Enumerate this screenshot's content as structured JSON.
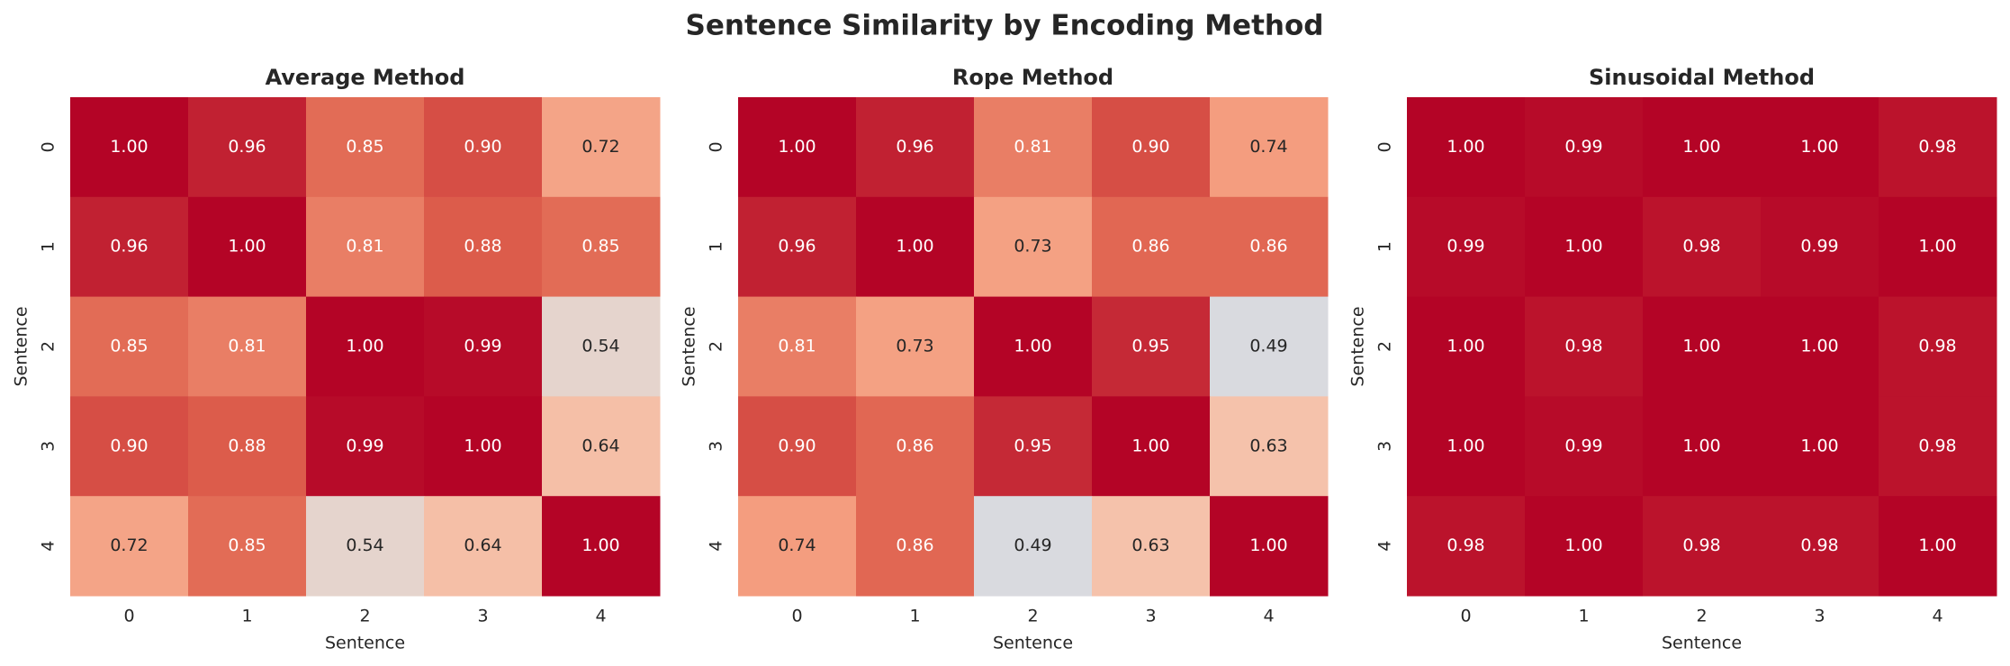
{
  "title": "Sentence Similarity by Encoding Method",
  "chart_data": [
    {
      "type": "heatmap",
      "title": "Average Method",
      "x_label": "Sentence",
      "y_label": "Sentence",
      "x_categories": [
        0,
        1,
        2,
        3,
        4
      ],
      "y_categories": [
        0,
        1,
        2,
        3,
        4
      ],
      "cmap": "coolwarm",
      "vmin": 0,
      "vmax": 1,
      "values": [
        [
          1.0,
          0.96,
          0.85,
          0.9,
          0.72
        ],
        [
          0.96,
          1.0,
          0.81,
          0.88,
          0.85
        ],
        [
          0.85,
          0.81,
          1.0,
          0.99,
          0.54
        ],
        [
          0.9,
          0.88,
          0.99,
          1.0,
          0.64
        ],
        [
          0.72,
          0.85,
          0.54,
          0.64,
          1.0
        ]
      ],
      "value_labels": [
        [
          "1.00",
          "0.96",
          "0.85",
          "0.90",
          "0.72"
        ],
        [
          "0.96",
          "1.00",
          "0.81",
          "0.88",
          "0.85"
        ],
        [
          "0.85",
          "0.81",
          "1.00",
          "0.99",
          "0.54"
        ],
        [
          "0.90",
          "0.88",
          "0.99",
          "1.00",
          "0.64"
        ],
        [
          "0.72",
          "0.85",
          "0.54",
          "0.64",
          "1.00"
        ]
      ]
    },
    {
      "type": "heatmap",
      "title": "Rope Method",
      "x_label": "Sentence",
      "y_label": "Sentence",
      "x_categories": [
        0,
        1,
        2,
        3,
        4
      ],
      "y_categories": [
        0,
        1,
        2,
        3,
        4
      ],
      "cmap": "coolwarm",
      "vmin": 0,
      "vmax": 1,
      "values": [
        [
          1.0,
          0.96,
          0.81,
          0.9,
          0.74
        ],
        [
          0.96,
          1.0,
          0.73,
          0.86,
          0.86
        ],
        [
          0.81,
          0.73,
          1.0,
          0.95,
          0.49
        ],
        [
          0.9,
          0.86,
          0.95,
          1.0,
          0.63
        ],
        [
          0.74,
          0.86,
          0.49,
          0.63,
          1.0
        ]
      ],
      "value_labels": [
        [
          "1.00",
          "0.96",
          "0.81",
          "0.90",
          "0.74"
        ],
        [
          "0.96",
          "1.00",
          "0.73",
          "0.86",
          "0.86"
        ],
        [
          "0.81",
          "0.73",
          "1.00",
          "0.95",
          "0.49"
        ],
        [
          "0.90",
          "0.86",
          "0.95",
          "1.00",
          "0.63"
        ],
        [
          "0.74",
          "0.86",
          "0.49",
          "0.63",
          "1.00"
        ]
      ]
    },
    {
      "type": "heatmap",
      "title": "Sinusoidal Method",
      "x_label": "Sentence",
      "y_label": "Sentence",
      "x_categories": [
        0,
        1,
        2,
        3,
        4
      ],
      "y_categories": [
        0,
        1,
        2,
        3,
        4
      ],
      "cmap": "coolwarm",
      "vmin": 0,
      "vmax": 1,
      "values": [
        [
          1.0,
          0.99,
          1.0,
          1.0,
          0.98
        ],
        [
          0.99,
          1.0,
          0.98,
          0.99,
          1.0
        ],
        [
          1.0,
          0.98,
          1.0,
          1.0,
          0.98
        ],
        [
          1.0,
          0.99,
          1.0,
          1.0,
          0.98
        ],
        [
          0.98,
          1.0,
          0.98,
          0.98,
          1.0
        ]
      ],
      "value_labels": [
        [
          "1.00",
          "0.99",
          "1.00",
          "1.00",
          "0.98"
        ],
        [
          "0.99",
          "1.00",
          "0.98",
          "0.99",
          "1.00"
        ],
        [
          "1.00",
          "0.98",
          "1.00",
          "1.00",
          "0.98"
        ],
        [
          "1.00",
          "0.99",
          "1.00",
          "1.00",
          "0.98"
        ],
        [
          "0.98",
          "1.00",
          "0.98",
          "0.98",
          "1.00"
        ]
      ]
    }
  ]
}
